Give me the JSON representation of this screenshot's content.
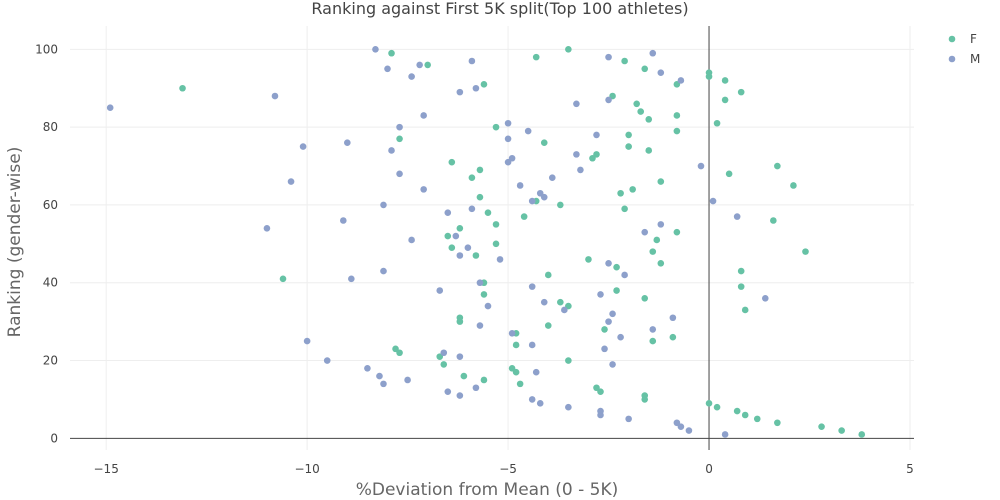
{
  "chart_data": {
    "type": "scatter",
    "title": "Ranking against First 5K split(Top 100 athletes)",
    "xlabel": "%Deviation from Mean (0 - 5K)",
    "ylabel": "Ranking (gender-wise)",
    "xlim": [
      -15.9,
      5.1
    ],
    "ylim": [
      -3,
      106
    ],
    "xticks": [
      -15,
      -10,
      -5,
      0,
      5
    ],
    "xtick_labels": [
      "−15",
      "−10",
      "−5",
      "0",
      "5"
    ],
    "yticks": [
      0,
      20,
      40,
      60,
      80,
      100
    ],
    "ytick_labels": [
      "0",
      "20",
      "40",
      "60",
      "80",
      "100"
    ],
    "grid": true,
    "legend_position": "top-right",
    "series": [
      {
        "name": "F",
        "color": "#66c2a5",
        "points": [
          [
            -7.9,
            99
          ],
          [
            -7,
            96
          ],
          [
            -5.6,
            91
          ],
          [
            -4.3,
            98
          ],
          [
            -3.5,
            100
          ],
          [
            -2.1,
            97
          ],
          [
            -1.6,
            95
          ],
          [
            -0.8,
            91
          ],
          [
            -13.1,
            90
          ],
          [
            0,
            94
          ],
          [
            0,
            93
          ],
          [
            0.4,
            92
          ],
          [
            0.8,
            89
          ],
          [
            0.4,
            87
          ],
          [
            -2.4,
            88
          ],
          [
            -1.8,
            86
          ],
          [
            -1.7,
            84
          ],
          [
            -1.5,
            82
          ],
          [
            -0.8,
            83
          ],
          [
            -0.8,
            79
          ],
          [
            -2,
            78
          ],
          [
            -5.3,
            80
          ],
          [
            -7.7,
            77
          ],
          [
            0.2,
            81
          ],
          [
            -2.9,
            72
          ],
          [
            -2.8,
            73
          ],
          [
            -1.5,
            74
          ],
          [
            -2,
            75
          ],
          [
            -4.1,
            76
          ],
          [
            -6.4,
            71
          ],
          [
            -5.9,
            67
          ],
          [
            -5.7,
            69
          ],
          [
            -2.2,
            63
          ],
          [
            -1.9,
            64
          ],
          [
            -1.2,
            66
          ],
          [
            -4.3,
            61
          ],
          [
            -3.7,
            60
          ],
          [
            -4.6,
            57
          ],
          [
            -2.1,
            59
          ],
          [
            -5.7,
            62
          ],
          [
            0.5,
            68
          ],
          [
            1.7,
            70
          ],
          [
            2.1,
            65
          ],
          [
            1.6,
            56
          ],
          [
            2.4,
            48
          ],
          [
            -5.5,
            58
          ],
          [
            -5.3,
            55
          ],
          [
            -6.5,
            52
          ],
          [
            -6.2,
            54
          ],
          [
            -5.3,
            50
          ],
          [
            -1.3,
            51
          ],
          [
            -0.8,
            53
          ],
          [
            -1.4,
            48
          ],
          [
            -1.2,
            45
          ],
          [
            -5.8,
            47
          ],
          [
            -6.4,
            49
          ],
          [
            -2.3,
            44
          ],
          [
            -3,
            46
          ],
          [
            -4,
            42
          ],
          [
            -10.6,
            41
          ],
          [
            -5.6,
            40
          ],
          [
            -5.6,
            37
          ],
          [
            -2.3,
            38
          ],
          [
            -1.6,
            36
          ],
          [
            0.8,
            43
          ],
          [
            0.8,
            39
          ],
          [
            0.9,
            33
          ],
          [
            -3.7,
            35
          ],
          [
            -3.5,
            34
          ],
          [
            -4,
            29
          ],
          [
            -2.6,
            28
          ],
          [
            -1.4,
            25
          ],
          [
            -0.9,
            26
          ],
          [
            -4.8,
            27
          ],
          [
            -4.8,
            24
          ],
          [
            -6.2,
            30
          ],
          [
            -6.2,
            31
          ],
          [
            -7.8,
            23
          ],
          [
            -7.7,
            22
          ],
          [
            -6.7,
            21
          ],
          [
            -6.6,
            19
          ],
          [
            -3.5,
            20
          ],
          [
            -4.9,
            18
          ],
          [
            -4.8,
            17
          ],
          [
            -4.7,
            14
          ],
          [
            -5.6,
            15
          ],
          [
            -6.1,
            16
          ],
          [
            -2.8,
            13
          ],
          [
            -2.7,
            12
          ],
          [
            -1.6,
            11
          ],
          [
            -1.6,
            10
          ],
          [
            -0.0,
            9
          ],
          [
            0.2,
            8
          ],
          [
            0.7,
            7
          ],
          [
            0.9,
            6
          ],
          [
            1.2,
            5
          ],
          [
            1.7,
            4
          ],
          [
            2.8,
            3
          ],
          [
            3.3,
            2
          ],
          [
            3.8,
            1
          ]
        ]
      },
      {
        "name": "M",
        "color": "#8da0cb",
        "points": [
          [
            -8.3,
            100
          ],
          [
            -1.4,
            99
          ],
          [
            -2.5,
            98
          ],
          [
            -5.9,
            97
          ],
          [
            -7.2,
            96
          ],
          [
            -8,
            95
          ],
          [
            -1.2,
            94
          ],
          [
            -7.4,
            93
          ],
          [
            -0.7,
            92
          ],
          [
            -6.2,
            89
          ],
          [
            -5.8,
            90
          ],
          [
            -14.9,
            85
          ],
          [
            -10.8,
            88
          ],
          [
            -2.5,
            87
          ],
          [
            -3.3,
            86
          ],
          [
            -7.1,
            83
          ],
          [
            -5,
            81
          ],
          [
            -4.5,
            79
          ],
          [
            -7.7,
            80
          ],
          [
            -2.8,
            78
          ],
          [
            -5,
            77
          ],
          [
            -9,
            76
          ],
          [
            -10.1,
            75
          ],
          [
            -7.9,
            74
          ],
          [
            -3.3,
            73
          ],
          [
            -4.9,
            72
          ],
          [
            -5,
            71
          ],
          [
            -0.2,
            70
          ],
          [
            -3.2,
            69
          ],
          [
            -7.7,
            68
          ],
          [
            -3.9,
            67
          ],
          [
            -10.4,
            66
          ],
          [
            -4.7,
            65
          ],
          [
            -7.1,
            64
          ],
          [
            -4.2,
            63
          ],
          [
            -4.1,
            62
          ],
          [
            -4.4,
            61
          ],
          [
            0.1,
            61
          ],
          [
            -8.1,
            60
          ],
          [
            -5.9,
            59
          ],
          [
            -6.5,
            58
          ],
          [
            0.7,
            57
          ],
          [
            -11,
            54
          ],
          [
            -9.1,
            56
          ],
          [
            -1.2,
            55
          ],
          [
            -1.6,
            53
          ],
          [
            -6.3,
            52
          ],
          [
            -7.4,
            51
          ],
          [
            -6,
            49
          ],
          [
            -6.2,
            47
          ],
          [
            -5.2,
            46
          ],
          [
            -2.5,
            45
          ],
          [
            -2.1,
            42
          ],
          [
            -8.1,
            43
          ],
          [
            -8.9,
            41
          ],
          [
            -5.7,
            40
          ],
          [
            -4.4,
            39
          ],
          [
            -6.7,
            38
          ],
          [
            -2.7,
            37
          ],
          [
            1.4,
            36
          ],
          [
            -4.1,
            35
          ],
          [
            -5.5,
            34
          ],
          [
            -3.6,
            33
          ],
          [
            -2.4,
            32
          ],
          [
            -0.9,
            31
          ],
          [
            -2.5,
            30
          ],
          [
            -5.7,
            29
          ],
          [
            -1.4,
            28
          ],
          [
            -4.9,
            27
          ],
          [
            -10,
            25
          ],
          [
            -2.2,
            26
          ],
          [
            -4.4,
            24
          ],
          [
            -2.6,
            23
          ],
          [
            -6.6,
            22
          ],
          [
            -6.2,
            21
          ],
          [
            -9.5,
            20
          ],
          [
            -2.4,
            19
          ],
          [
            -8.5,
            18
          ],
          [
            -4.3,
            17
          ],
          [
            -8.2,
            16
          ],
          [
            -7.5,
            15
          ],
          [
            -8.1,
            14
          ],
          [
            -5.8,
            13
          ],
          [
            -6.5,
            12
          ],
          [
            -6.2,
            11
          ],
          [
            -4.4,
            10
          ],
          [
            -4.2,
            9
          ],
          [
            -3.5,
            8
          ],
          [
            -2.7,
            7
          ],
          [
            -2.7,
            6
          ],
          [
            -2,
            5
          ],
          [
            -0.8,
            4
          ],
          [
            -0.7,
            3
          ],
          [
            -0.5,
            2
          ],
          [
            0.4,
            1
          ]
        ]
      }
    ]
  }
}
